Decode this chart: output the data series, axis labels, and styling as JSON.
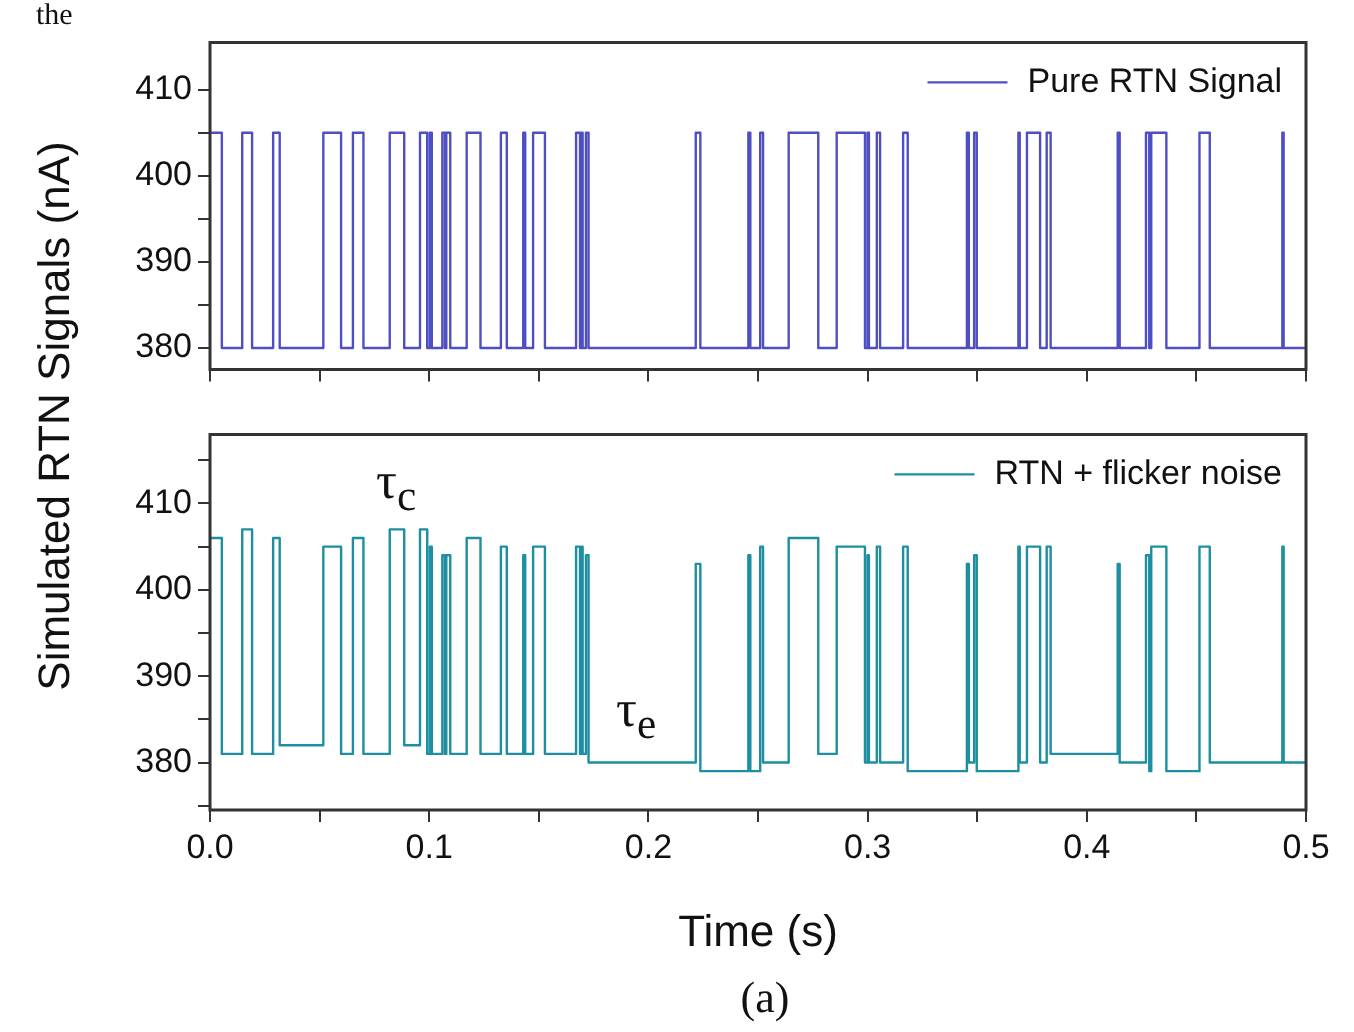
{
  "chart_data": [
    {
      "type": "step",
      "ylabel": "Simulated RTN Signals (nA)",
      "annotations": [
        "the"
      ],
      "legend": "top right",
      "tick_labels": "y",
      "xlim": [
        0,
        0.5
      ],
      "xticks": [
        {
          "value": 0,
          "label": null
        },
        {
          "value": 0.05,
          "label": null
        },
        {
          "value": 0.1,
          "label": null
        },
        {
          "value": 0.15,
          "label": null
        },
        {
          "value": 0.2,
          "label": null
        },
        {
          "value": 0.25,
          "label": null
        },
        {
          "value": 0.3,
          "label": null
        },
        {
          "value": 0.35,
          "label": null
        },
        {
          "value": 0.4,
          "label": null
        },
        {
          "value": 0.45,
          "label": null
        },
        {
          "value": 0.5,
          "label": null
        }
      ],
      "ylim": [
        377.5,
        415.5
      ],
      "yticks": [
        380,
        {
          "value": 385,
          "label": null
        },
        390,
        {
          "value": 395,
          "label": null
        },
        400,
        {
          "value": 405,
          "label": null
        },
        410
      ],
      "x": [
        0,
        0.0054,
        0.0147,
        0.0192,
        0.0288,
        0.0318,
        0.0517,
        0.0598,
        0.0652,
        0.07,
        0.082,
        0.0886,
        0.0958,
        0.0991,
        0.1003,
        0.1012,
        0.106,
        0.1072,
        0.1078,
        0.1096,
        0.1171,
        0.1234,
        0.1327,
        0.1354,
        0.1429,
        0.1438,
        0.1474,
        0.1528,
        0.167,
        0.1688,
        0.1694,
        0.17,
        0.1715,
        0.1727,
        0.2216,
        0.2237,
        0.2456,
        0.2465,
        0.251,
        0.2523,
        0.264,
        0.2775,
        0.2859,
        0.2988,
        0.3,
        0.3006,
        0.3042,
        0.3057,
        0.3162,
        0.3183,
        0.3453,
        0.3462,
        0.3486,
        0.3498,
        0.3688,
        0.3694,
        0.3727,
        0.3787,
        0.3817,
        0.3835,
        0.4141,
        0.415,
        0.427,
        0.4285,
        0.4294,
        0.4363,
        0.4514,
        0.4561,
        0.4892,
        0.4898,
        0.5
      ],
      "series": [
        {
          "name": "Pure RTN Signal",
          "color": "#4f4fc4",
          "values": [
            405,
            380,
            405,
            380,
            405,
            380,
            405,
            380,
            405,
            380,
            405,
            380,
            405,
            380,
            405,
            380,
            405,
            380,
            405,
            380,
            405,
            380,
            405,
            380,
            405,
            380,
            405,
            380,
            405,
            380,
            405,
            380,
            405,
            380,
            405,
            380,
            405,
            380,
            405,
            380,
            405,
            380,
            405,
            380,
            405,
            380,
            405,
            380,
            405,
            380,
            405,
            380,
            405,
            380,
            405,
            380,
            405,
            380,
            405,
            380,
            405,
            380,
            405,
            380,
            405,
            380,
            405,
            380,
            405,
            380,
            380
          ]
        }
      ]
    },
    {
      "type": "step",
      "xlabel": "Time (s)",
      "annotations": [
        "τ$_{c}$",
        "τ$_{e}$",
        "(a)"
      ],
      "legend": "top right",
      "xlim": [
        0,
        0.5
      ],
      "xticks": [
        {
          "value": 0,
          "label": "0.0"
        },
        {
          "value": 0.05,
          "label": null
        },
        {
          "value": 0.1,
          "label": "0.1"
        },
        {
          "value": 0.15,
          "label": null
        },
        {
          "value": 0.2,
          "label": "0.2"
        },
        {
          "value": 0.25,
          "label": null
        },
        {
          "value": 0.3,
          "label": "0.3"
        },
        {
          "value": 0.35,
          "label": null
        },
        {
          "value": 0.4,
          "label": "0.4"
        },
        {
          "value": 0.45,
          "label": null
        },
        {
          "value": 0.5,
          "label": "0.5"
        }
      ],
      "ylim": [
        374.5,
        418
      ],
      "yticks": [
        {
          "value": 375,
          "label": null
        },
        380,
        {
          "value": 385,
          "label": null
        },
        390,
        {
          "value": 395,
          "label": null
        },
        400,
        {
          "value": 405,
          "label": null
        },
        410,
        {
          "value": 415,
          "label": null
        }
      ],
      "x": [
        0,
        0.0054,
        0.0147,
        0.0192,
        0.0288,
        0.0318,
        0.0517,
        0.0598,
        0.0652,
        0.07,
        0.082,
        0.0886,
        0.0958,
        0.0991,
        0.1003,
        0.1012,
        0.106,
        0.1072,
        0.1078,
        0.1096,
        0.1171,
        0.1234,
        0.1327,
        0.1354,
        0.1429,
        0.1438,
        0.1474,
        0.1528,
        0.167,
        0.1688,
        0.1694,
        0.17,
        0.1715,
        0.1727,
        0.2216,
        0.2237,
        0.2456,
        0.2465,
        0.251,
        0.2523,
        0.264,
        0.2775,
        0.2859,
        0.2988,
        0.3,
        0.3006,
        0.3042,
        0.3057,
        0.3162,
        0.3183,
        0.3453,
        0.3462,
        0.3486,
        0.3498,
        0.3688,
        0.3694,
        0.3727,
        0.3787,
        0.3817,
        0.3835,
        0.4141,
        0.415,
        0.427,
        0.4285,
        0.4294,
        0.4363,
        0.4514,
        0.4561,
        0.4892,
        0.4898,
        0.5
      ],
      "series": [
        {
          "name": "RTN + flicker noise",
          "color": "#1d8fa0",
          "values": [
            406,
            381,
            407,
            381,
            406,
            382,
            405,
            381,
            406,
            381,
            407,
            382,
            407,
            381,
            405,
            381,
            404,
            381,
            404,
            381,
            406,
            381,
            405,
            381,
            404,
            381,
            405,
            381,
            405,
            381,
            405,
            381,
            404,
            380,
            403,
            379,
            404,
            379,
            405,
            380,
            406,
            381,
            405,
            380,
            404,
            380,
            405,
            380,
            405,
            379,
            403,
            380,
            404,
            379,
            405,
            380,
            405,
            380,
            405,
            381,
            403,
            380,
            404,
            379,
            405,
            379,
            405,
            380,
            405,
            380,
            380
          ]
        }
      ]
    }
  ]
}
